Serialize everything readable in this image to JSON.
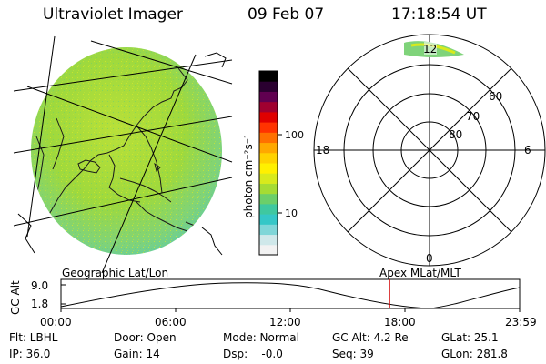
{
  "header": {
    "instrument": "Ultraviolet Imager",
    "date": "09 Feb 07",
    "time": "17:18:54 UT"
  },
  "colorbar": {
    "unit_label": "photon cm⁻²s⁻¹",
    "tick_100": "100",
    "tick_10": "10",
    "scale": "log",
    "colors": [
      "#f2f2f2",
      "#cfe8ea",
      "#7fd6d8",
      "#35c7c7",
      "#3fc8a0",
      "#6ccf6a",
      "#a5dc34",
      "#d8ea1c",
      "#fff000",
      "#ffd200",
      "#ffa800",
      "#ff7000",
      "#ff3300",
      "#e00000",
      "#a00030",
      "#600050",
      "#2a0030",
      "#000000"
    ]
  },
  "polar_plot": {
    "mlt_labels": {
      "top": "12",
      "left": "18",
      "right": "6",
      "bottom": "0"
    },
    "mlat_labels": [
      "60",
      "70",
      "80"
    ]
  },
  "orbit_panel": {
    "left_title": "Geographic Lat/Lon",
    "right_title": "Apex  MLat/MLT",
    "ylabel": "GC Alt",
    "y_ticks": [
      "9.0",
      "1.8"
    ],
    "x_ticks": [
      "00:00",
      "06:00",
      "12:00",
      "18:00",
      "23:59"
    ],
    "current_time_marker": "17:19",
    "marker_color": "#d00000"
  },
  "status": {
    "flt": "Flt: LBHL",
    "door": "Door: Open",
    "mode": "Mode: Normal",
    "gcalt": "GC Alt: 4.2 Re",
    "glat": "GLat:  25.1",
    "ip": "IP: 36.0",
    "gain": "Gain: 14",
    "dsp": "Dsp:    -0.0",
    "seq": "Seq: 39",
    "glon": "GLon: 281.8"
  }
}
